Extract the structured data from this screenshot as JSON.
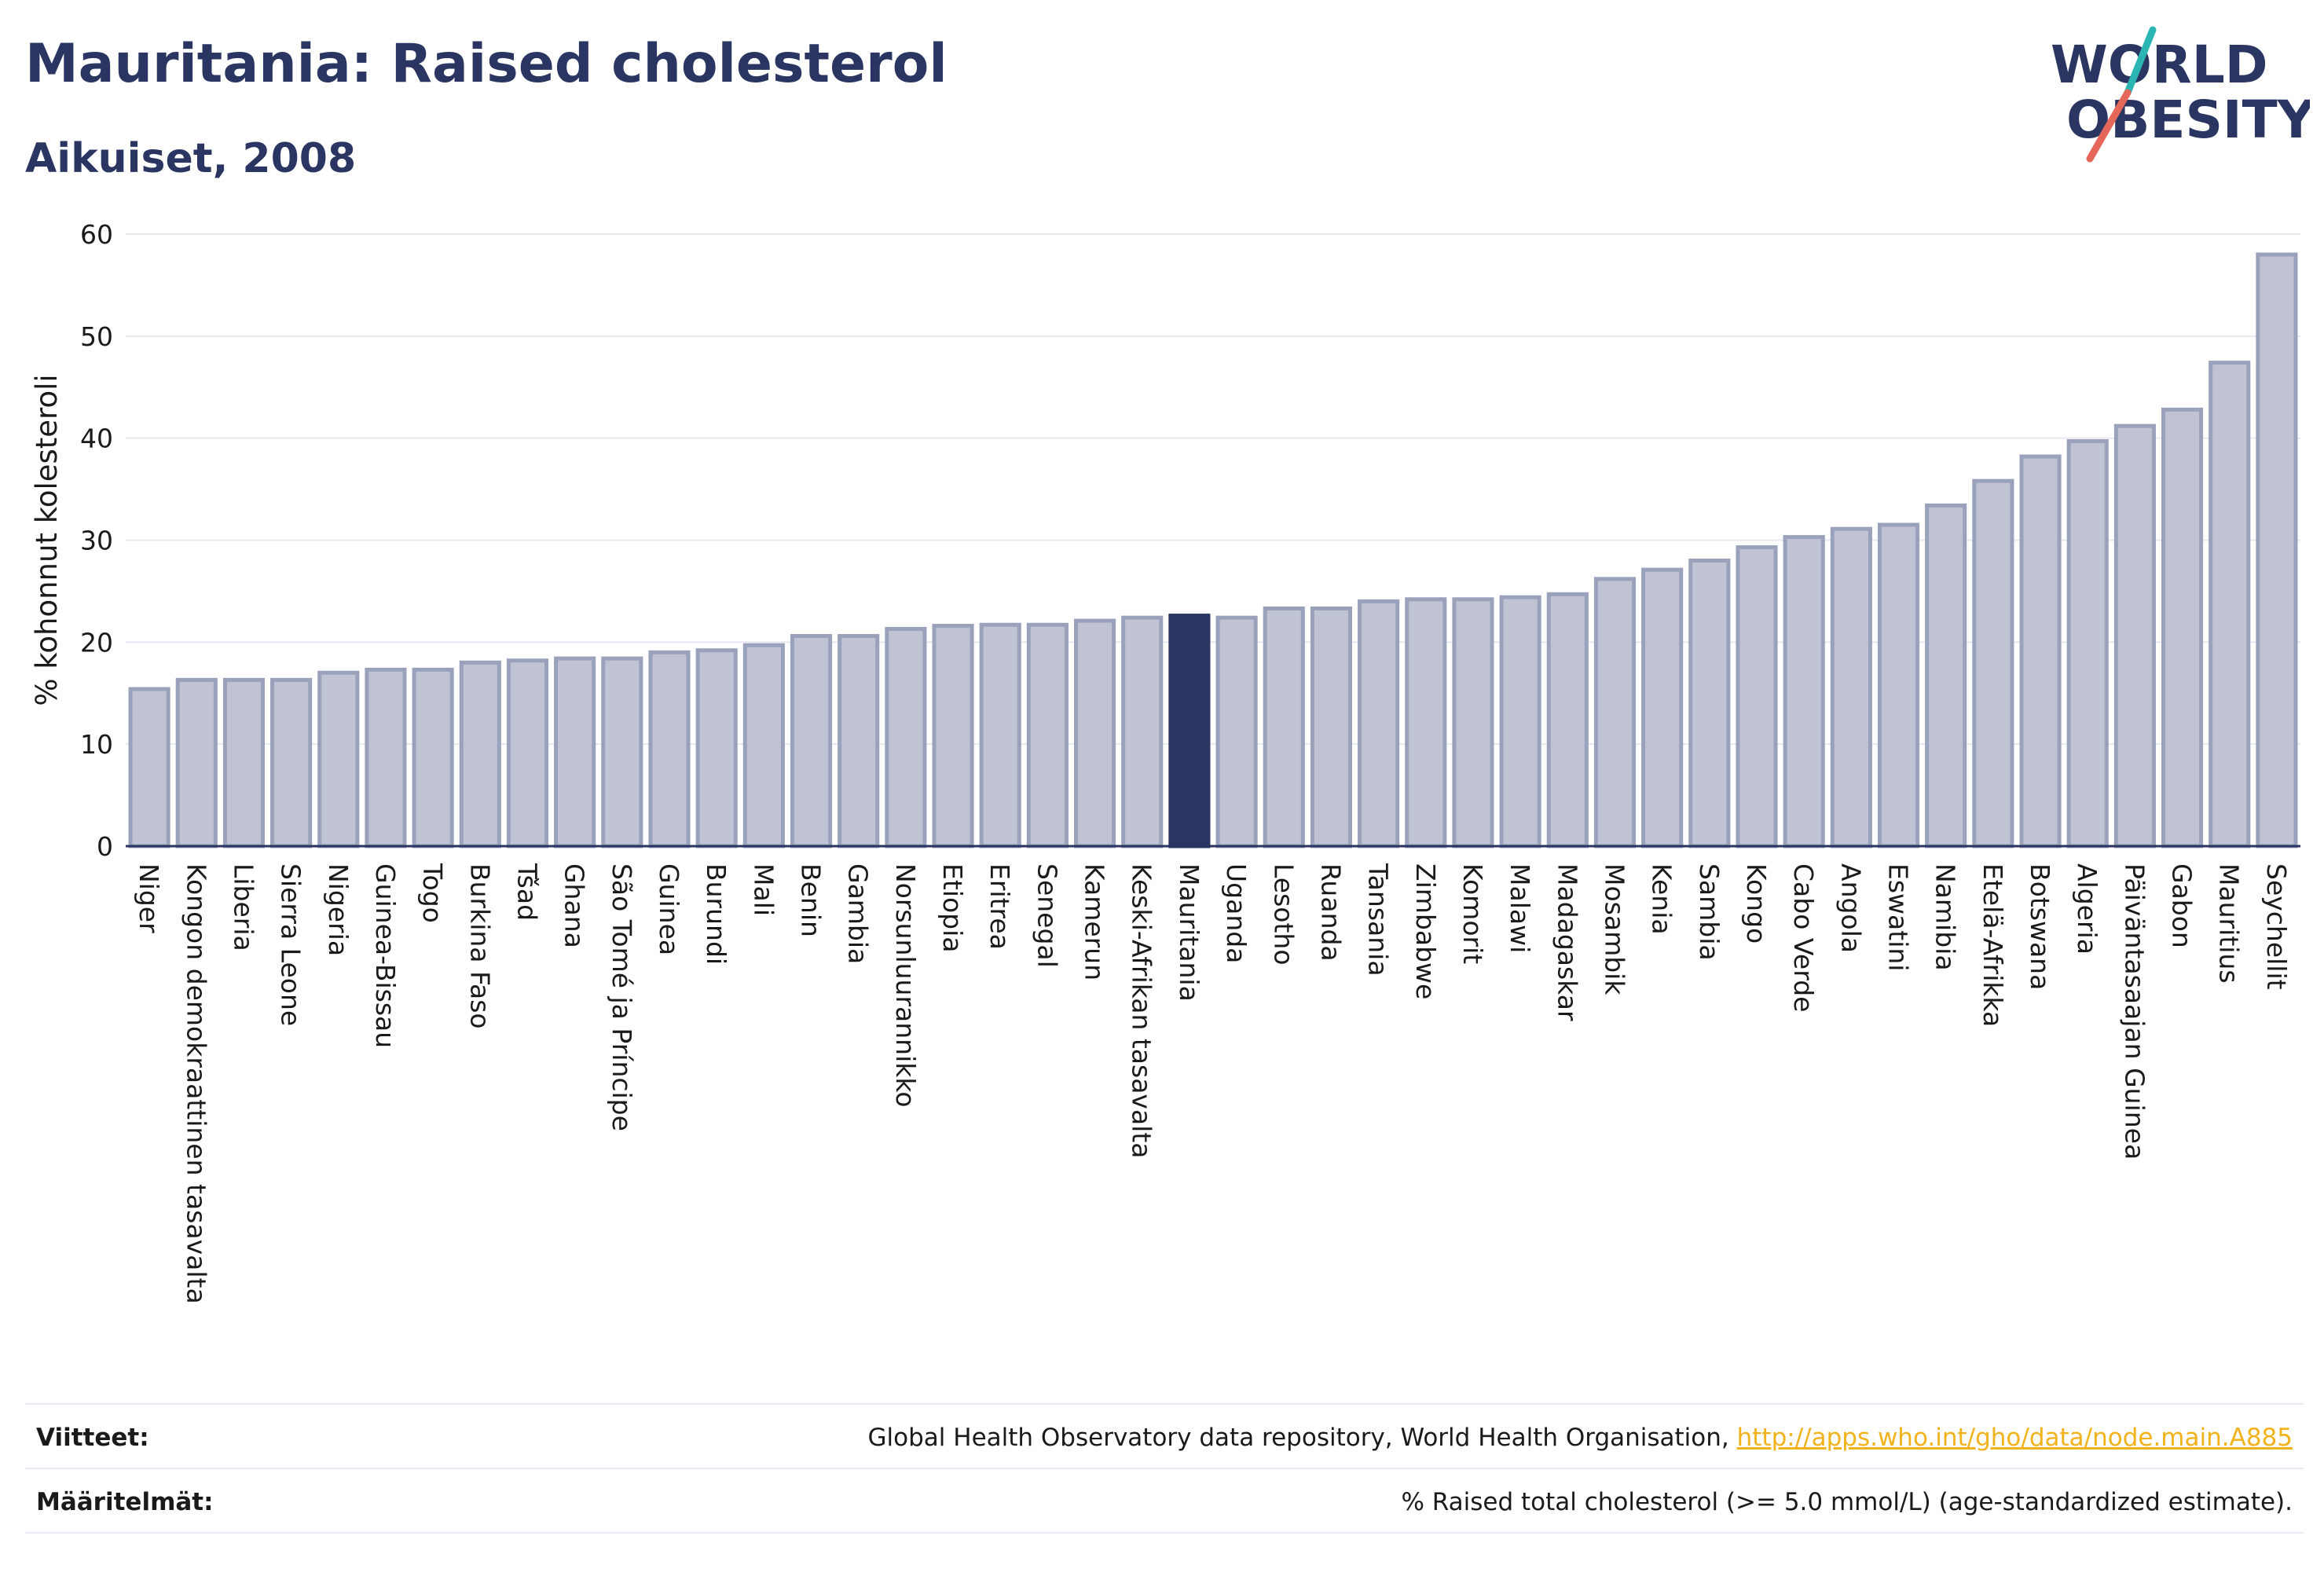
{
  "header": {
    "title": "Mauritania: Raised cholesterol",
    "subtitle": "Aikuiset, 2008"
  },
  "logo": {
    "line1": "WORLD",
    "line2": "OBESITY"
  },
  "colors": {
    "bar": "#bfc3d3",
    "bar_stroke": "#9aa1bb",
    "highlight": "#2a3561",
    "accent_teal": "#2ab5b3",
    "accent_red": "#e5675a"
  },
  "chart_data": {
    "type": "bar",
    "ylabel": "% kohonnut kolesteroli",
    "ylim": [
      0,
      60
    ],
    "yticks": [
      0,
      10,
      20,
      30,
      40,
      50,
      60
    ],
    "highlight": "Mauritania",
    "categories": [
      "Niger",
      "Kongon demokraattinen tasavalta",
      "Liberia",
      "Sierra Leone",
      "Nigeria",
      "Guinea-Bissau",
      "Togo",
      "Burkina Faso",
      "Tšad",
      "Ghana",
      "São Tomé ja Príncipe",
      "Guinea",
      "Burundi",
      "Mali",
      "Benin",
      "Gambia",
      "Norsunluurannikko",
      "Etiopia",
      "Eritrea",
      "Senegal",
      "Kamerun",
      "Keski-Afrikan tasavalta",
      "Mauritania",
      "Uganda",
      "Lesotho",
      "Ruanda",
      "Tansania",
      "Zimbabwe",
      "Komorit",
      "Malawi",
      "Madagaskar",
      "Mosambik",
      "Kenia",
      "Sambia",
      "Kongo",
      "Cabo Verde",
      "Angola",
      "Eswatini",
      "Namibia",
      "Etelä-Afrikka",
      "Botswana",
      "Algeria",
      "Päiväntasaajan Guinea",
      "Gabon",
      "Mauritius",
      "Seychellit"
    ],
    "values": [
      15.4,
      16.3,
      16.3,
      16.3,
      17.0,
      17.3,
      17.3,
      18.0,
      18.2,
      18.4,
      18.4,
      19.0,
      19.2,
      19.7,
      20.6,
      20.6,
      21.3,
      21.6,
      21.7,
      21.7,
      22.1,
      22.4,
      22.6,
      22.4,
      23.3,
      23.3,
      24.0,
      24.2,
      24.2,
      24.4,
      24.7,
      26.2,
      27.1,
      28.0,
      29.3,
      30.3,
      31.1,
      31.5,
      33.4,
      35.8,
      38.2,
      39.7,
      41.2,
      42.8,
      47.4,
      58.0
    ]
  },
  "footer": {
    "sources_label": "Viitteet:",
    "sources_text": "Global Health Observatory data repository, World Health Organisation,",
    "sources_link": "http://apps.who.int/gho/data/node.main.A885",
    "definitions_label": "Määritelmät:",
    "definitions_text": "% Raised total cholesterol (>= 5.0 mmol/L) (age-standardized estimate)."
  }
}
